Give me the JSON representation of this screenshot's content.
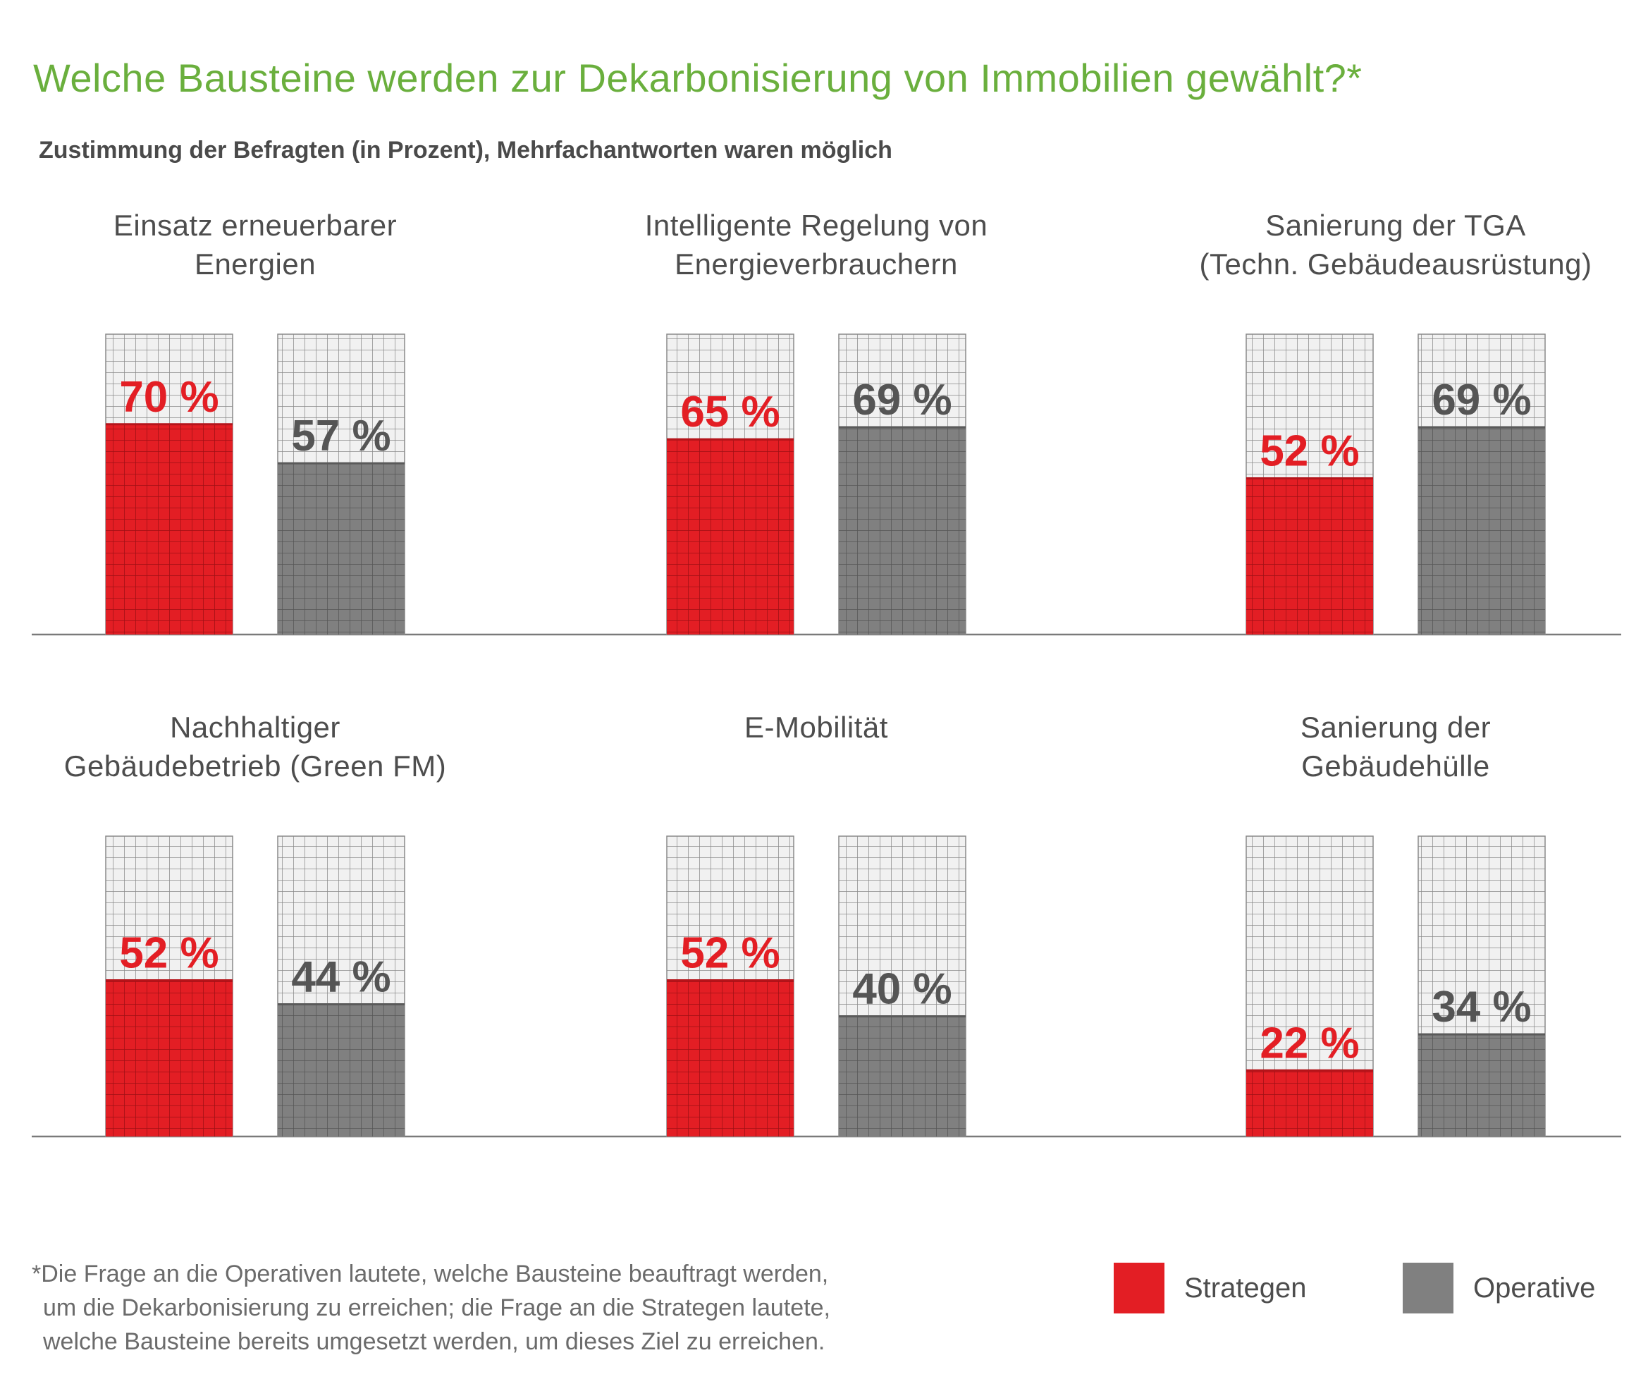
{
  "title": "Welche Bausteine werden zur Dekarbonisierung von Immobilien gewählt?*",
  "subtitle": "Zustimmung der Befragten (in Prozent), Mehrfachantworten waren möglich",
  "colors": {
    "strategen": "#e31e24",
    "operative": "#808080",
    "title": "#6aaf3d"
  },
  "legend": {
    "strategen": "Strategen",
    "operative": "Operative"
  },
  "footnote": {
    "line1": "*Die Frage an die Operativen lautete, welche Bausteine beauftragt werden,",
    "line2": "um die Dekarbonisierung zu erreichen; die Frage an die Strategen lautete,",
    "line3": "welche Bausteine bereits umgesetzt werden, um dieses Ziel zu erreichen."
  },
  "chart_data": {
    "type": "bar",
    "title": "Welche Bausteine werden zur Dekarbonisierung von Immobilien gewählt?*",
    "subtitle": "Zustimmung der Befragten (in Prozent), Mehrfachantworten waren möglich",
    "ylim": [
      0,
      100
    ],
    "grid": true,
    "legend_position": "bottom-right",
    "categories": [
      [
        "Einsatz erneuerbarer",
        "Energien"
      ],
      [
        "Intelligente Regelung von",
        "Energieverbrauchern"
      ],
      [
        "Sanierung der TGA",
        "(Techn. Gebäudeausrüstung)"
      ],
      [
        "Nachhaltiger",
        "Gebäudebetrieb (Green FM)"
      ],
      [
        "E-Mobilität"
      ],
      [
        "Sanierung der",
        "Gebäudehülle"
      ]
    ],
    "series": [
      {
        "name": "Strategen",
        "values": [
          70,
          65,
          52,
          52,
          52,
          22
        ],
        "labels": [
          "70 %",
          "65 %",
          "52 %",
          "52 %",
          "52 %",
          "22 %"
        ]
      },
      {
        "name": "Operative",
        "values": [
          57,
          69,
          69,
          44,
          40,
          34
        ],
        "labels": [
          "57 %",
          "69 %",
          "69 %",
          "44 %",
          "40 %",
          "34 %"
        ]
      }
    ]
  }
}
